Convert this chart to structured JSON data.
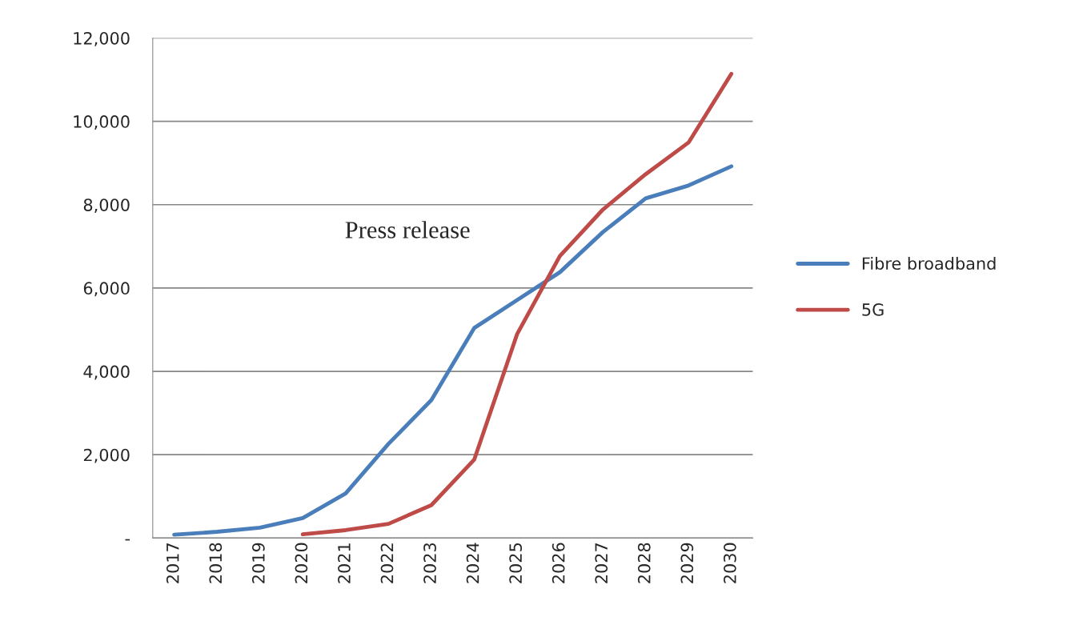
{
  "chart_data": {
    "type": "line",
    "categories": [
      "2017",
      "2018",
      "2019",
      "2020",
      "2021",
      "2022",
      "2023",
      "2024",
      "2025",
      "2026",
      "2027",
      "2028",
      "2029",
      "2030"
    ],
    "series": [
      {
        "name": "Fibre broadband",
        "color": "#4a7ebb",
        "values": [
          80,
          150,
          250,
          480,
          1070,
          2260,
          3310,
          5040,
          5710,
          6380,
          7340,
          8150,
          8460,
          8920
        ]
      },
      {
        "name": "5G",
        "color": "#be4b48",
        "values": [
          null,
          null,
          null,
          90,
          190,
          340,
          790,
          1880,
          4890,
          6770,
          7880,
          8730,
          9490,
          11140
        ]
      }
    ],
    "ylim": [
      0,
      12000
    ],
    "yticks": [
      {
        "value": 0,
        "label": "-"
      },
      {
        "value": 2000,
        "label": "2,000"
      },
      {
        "value": 4000,
        "label": "4,000"
      },
      {
        "value": 6000,
        "label": "6,000"
      },
      {
        "value": 8000,
        "label": "8,000"
      },
      {
        "value": 10000,
        "label": "10,000"
      },
      {
        "value": 12000,
        "label": "12,000"
      }
    ],
    "grid": "y",
    "legend": "right",
    "marker": "none",
    "line_style": "solid",
    "annotations": [
      "Press release"
    ]
  }
}
